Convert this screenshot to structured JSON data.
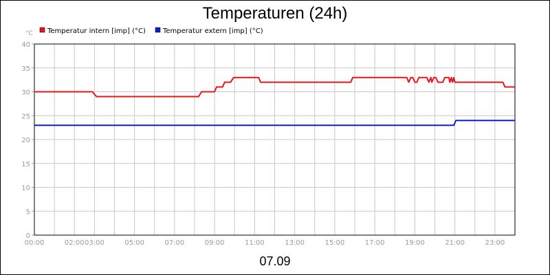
{
  "chart_data": {
    "type": "line",
    "title": "Temperaturen (24h)",
    "ylabel": "°C",
    "xlabel": "07.09",
    "ylim": [
      0,
      40
    ],
    "xlim": [
      0,
      24
    ],
    "y_ticks": [
      0,
      5,
      10,
      15,
      20,
      25,
      30,
      35,
      40
    ],
    "x_ticks": [
      {
        "x": 0,
        "label": "00:00"
      },
      {
        "x": 2,
        "label": "02:00"
      },
      {
        "x": 3,
        "label": "03:00"
      },
      {
        "x": 5,
        "label": "05:00"
      },
      {
        "x": 7,
        "label": "07:00"
      },
      {
        "x": 9,
        "label": "09:00"
      },
      {
        "x": 11,
        "label": "11:00"
      },
      {
        "x": 13,
        "label": "13:00"
      },
      {
        "x": 15,
        "label": "15:00"
      },
      {
        "x": 17,
        "label": "17:00"
      },
      {
        "x": 19,
        "label": "19:00"
      },
      {
        "x": 21,
        "label": "21:00"
      },
      {
        "x": 23,
        "label": "23:00"
      }
    ],
    "grid": true,
    "legend_position": "top-left",
    "series": [
      {
        "name": "Temperatur intern [imp] (°C)",
        "color": "#e8141c",
        "points": [
          [
            0.0,
            30
          ],
          [
            2.9,
            30
          ],
          [
            3.1,
            29
          ],
          [
            8.2,
            29
          ],
          [
            8.35,
            30
          ],
          [
            9.0,
            30
          ],
          [
            9.1,
            31
          ],
          [
            9.4,
            31
          ],
          [
            9.5,
            32
          ],
          [
            9.8,
            32
          ],
          [
            9.95,
            33
          ],
          [
            11.2,
            33
          ],
          [
            11.3,
            32
          ],
          [
            15.8,
            32
          ],
          [
            15.9,
            33
          ],
          [
            18.6,
            33
          ],
          [
            18.7,
            32
          ],
          [
            18.8,
            33
          ],
          [
            18.9,
            33
          ],
          [
            19.0,
            32
          ],
          [
            19.1,
            32
          ],
          [
            19.2,
            33
          ],
          [
            19.6,
            33
          ],
          [
            19.7,
            32
          ],
          [
            19.8,
            33
          ],
          [
            19.85,
            32
          ],
          [
            19.95,
            33
          ],
          [
            20.05,
            33
          ],
          [
            20.15,
            32
          ],
          [
            20.4,
            32
          ],
          [
            20.5,
            33
          ],
          [
            20.7,
            33
          ],
          [
            20.75,
            32
          ],
          [
            20.82,
            33
          ],
          [
            20.88,
            32
          ],
          [
            20.94,
            33
          ],
          [
            21.0,
            32
          ],
          [
            23.4,
            32
          ],
          [
            23.5,
            31
          ],
          [
            24.0,
            31
          ]
        ]
      },
      {
        "name": "Temperatur extern [imp] (°C)",
        "color": "#0b1fd0",
        "points": [
          [
            0.0,
            23
          ],
          [
            20.95,
            23
          ],
          [
            21.05,
            24
          ],
          [
            24.0,
            24
          ]
        ]
      }
    ]
  }
}
